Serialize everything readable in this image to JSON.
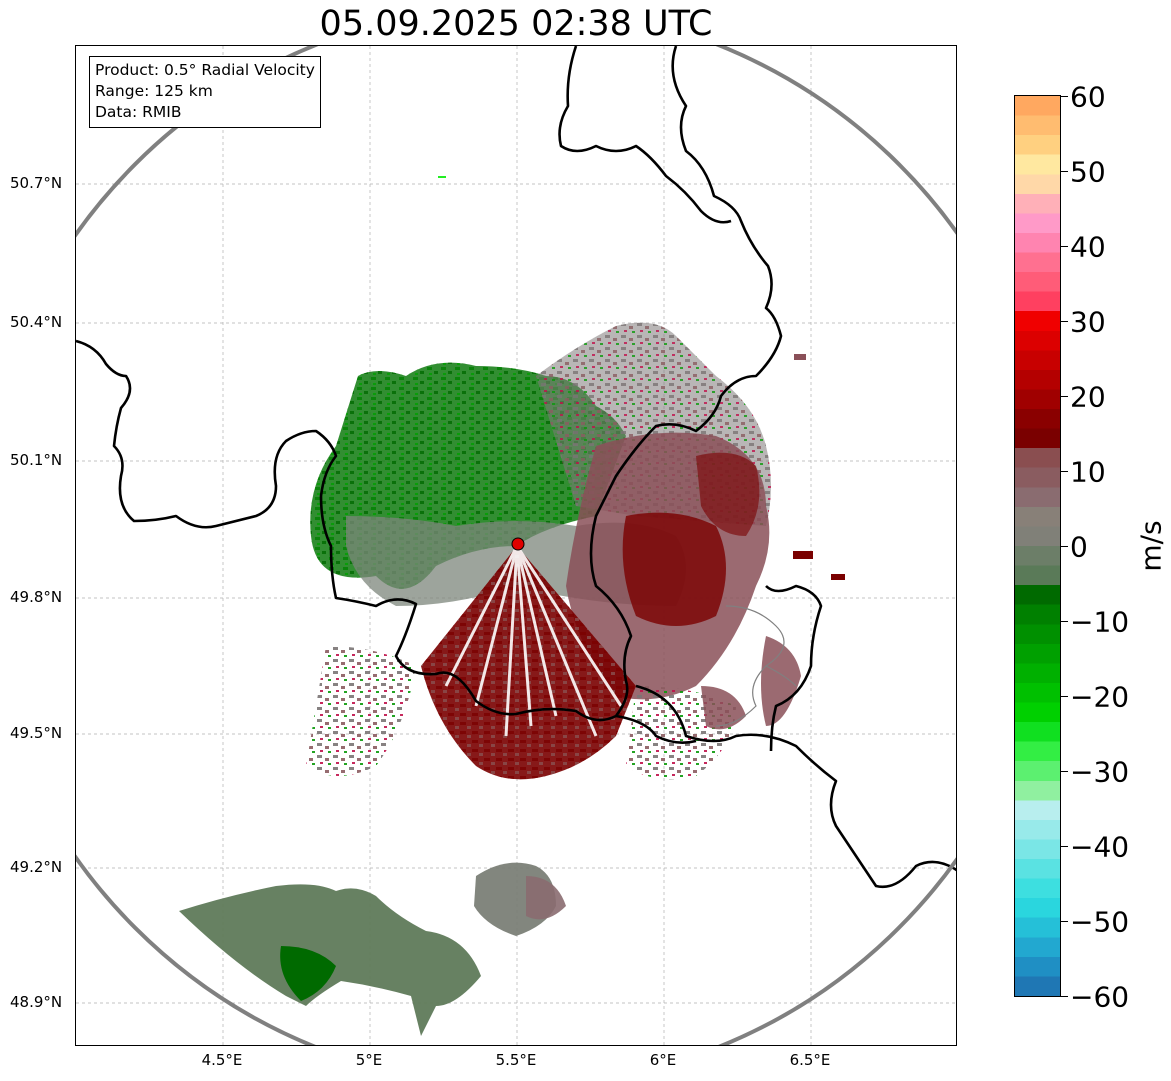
{
  "title": "05.09.2025 02:38 UTC",
  "info": {
    "product": "Product: 0.5° Radial Velocity",
    "range": "Range: 125 km",
    "data": "Data: RMIB"
  },
  "map": {
    "lat_labels": [
      "50.7°N",
      "50.4°N",
      "50.1°N",
      "49.8°N",
      "49.5°N",
      "49.2°N",
      "48.9°N"
    ],
    "lon_labels": [
      "4.5°E",
      "5°E",
      "5.5°E",
      "6°E",
      "6.5°E"
    ],
    "radar_site": {
      "lon": 5.5,
      "lat": 49.91
    },
    "range_ring_km": 125,
    "radar_marker_color": "#e00000",
    "ring_color": "#808080",
    "border_color": "#000000"
  },
  "colorbar": {
    "unit": "m/s",
    "min": -60,
    "max": 60,
    "tick_labels": [
      "60",
      "50",
      "40",
      "30",
      "20",
      "10",
      "0",
      "−10",
      "−20",
      "−30",
      "−40",
      "−50",
      "−60"
    ],
    "colors_bottom_to_top": [
      "#1f77b4",
      "#1f8fc4",
      "#22a8d0",
      "#25c0d8",
      "#2ad6de",
      "#3ddfe0",
      "#5ae2e2",
      "#7ae6e6",
      "#98eaea",
      "#b8eeee",
      "#90f0a0",
      "#5cf070",
      "#33ee44",
      "#10e020",
      "#00d000",
      "#00c000",
      "#00b000",
      "#00a000",
      "#009000",
      "#008000",
      "#006a00",
      "#5a7a58",
      "#6c7e68",
      "#808078",
      "#888078",
      "#8a6c70",
      "#8a5c60",
      "#8a4e50",
      "#7a0000",
      "#8a0000",
      "#a00000",
      "#b40000",
      "#c80000",
      "#dc0000",
      "#f00000",
      "#ff4060",
      "#ff5c78",
      "#ff7090",
      "#ff84b0",
      "#ff9ac8",
      "#ffb0b8",
      "#ffd8a8",
      "#ffe8a0",
      "#ffd080",
      "#ffbc70",
      "#ffa860"
    ]
  }
}
